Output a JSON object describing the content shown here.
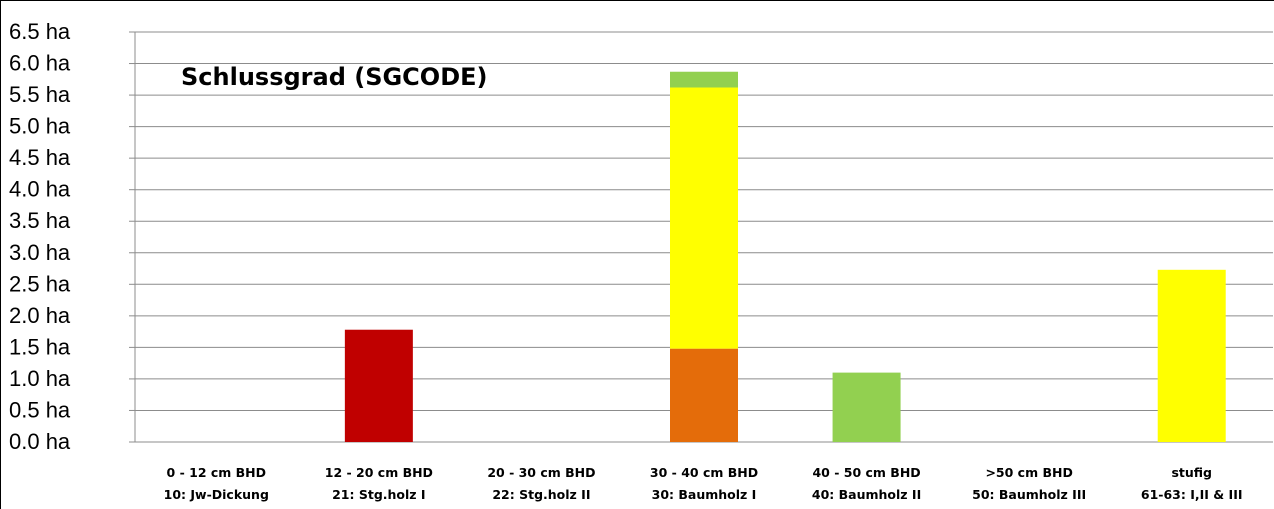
{
  "chart_data": {
    "type": "bar",
    "stacked": true,
    "title": "Schlussgrad (SGCODE)",
    "xlabel": "",
    "ylabel": "",
    "ylim": [
      0,
      6.5
    ],
    "yticks": [
      "0.0 ha",
      "0.5 ha",
      "1.0 ha",
      "1.5 ha",
      "2.0 ha",
      "2.5 ha",
      "3.0 ha",
      "3.5 ha",
      "4.0 ha",
      "4.5 ha",
      "5.0 ha",
      "5.5 ha",
      "6.0 ha",
      "6.5 ha"
    ],
    "grid": true,
    "categories": [
      [
        "0 - 12 cm BHD",
        "10: Jw-Dickung"
      ],
      [
        "12 - 20 cm BHD",
        "21: Stg.holz I"
      ],
      [
        "20 - 30 cm BHD",
        "22: Stg.holz II"
      ],
      [
        "30 - 40 cm BHD",
        "30: Baumholz I"
      ],
      [
        "40 - 50 cm BHD",
        "40: Baumholz II"
      ],
      [
        ">50 cm BHD",
        "50: Baumholz III"
      ],
      [
        "stufig",
        "61-63: I,II & III"
      ]
    ],
    "series": [
      {
        "color": "#c00000",
        "values": [
          0,
          1.78,
          0,
          0,
          0,
          0,
          0
        ]
      },
      {
        "color": "#e46c0a",
        "values": [
          0,
          0,
          0,
          1.48,
          0,
          0,
          0
        ]
      },
      {
        "color": "#ffff00",
        "values": [
          0,
          0,
          0,
          4.14,
          0,
          0,
          2.73
        ]
      },
      {
        "color": "#92d050",
        "values": [
          0,
          0,
          0,
          0.25,
          1.1,
          0,
          0
        ]
      }
    ]
  }
}
